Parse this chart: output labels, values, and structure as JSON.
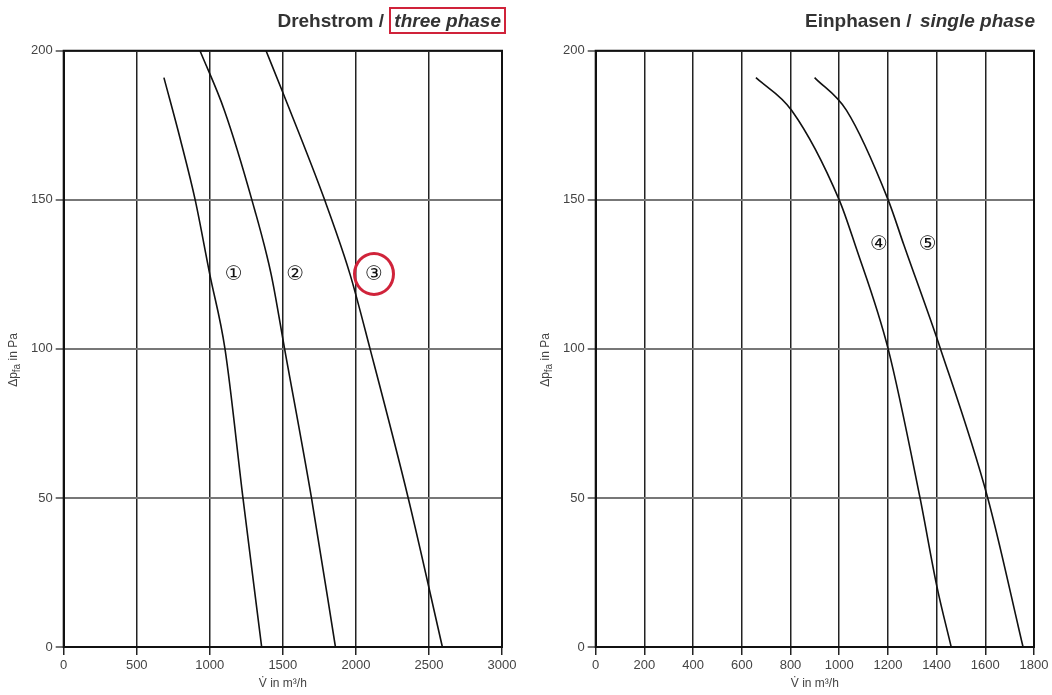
{
  "chart_data": [
    {
      "type": "line",
      "title": "Drehstrom / three phase",
      "xlabel": "V̇ in m³/h",
      "ylabel": "Δp$_{fa}$ in Pa",
      "xlim": [
        0,
        3000
      ],
      "xticks": [
        0,
        500,
        1000,
        1500,
        2000,
        2500,
        3000
      ],
      "ylim": [
        0,
        200
      ],
      "yticks": [
        0,
        50,
        100,
        150,
        200
      ],
      "grid": true,
      "legend": false,
      "marker": "none",
      "line_style": "solid",
      "series": [
        {
          "name": "①",
          "color": "#111111",
          "x": [
            686,
            800,
            900,
            1000,
            1104,
            1227,
            1355
          ],
          "values": [
            191,
            170,
            150,
            125,
            100,
            50,
            0
          ]
        },
        {
          "name": "②",
          "color": "#111111",
          "x": [
            933,
            1100,
            1288,
            1420,
            1512,
            1696,
            1860
          ],
          "values": [
            200,
            180,
            150,
            125,
            100,
            50,
            0
          ]
        },
        {
          "name": "③",
          "color": "#111111",
          "x": [
            1385,
            1500,
            1786,
            1960,
            2097,
            2358,
            2592
          ],
          "values": [
            200,
            186,
            150,
            125,
            100,
            50,
            0
          ]
        }
      ]
    },
    {
      "type": "line",
      "title": "Einphasen / single phase",
      "xlabel": "V̇ in m³/h",
      "ylabel": "Δp$_{fa}$ in Pa",
      "xlim": [
        0,
        1800
      ],
      "xticks": [
        0,
        200,
        400,
        600,
        800,
        1000,
        1200,
        1400,
        1600,
        1800
      ],
      "ylim": [
        0,
        200
      ],
      "yticks": [
        0,
        50,
        100,
        150,
        200
      ],
      "grid": true,
      "legend": false,
      "marker": "none",
      "line_style": "solid",
      "series": [
        {
          "name": "④",
          "color": "#111111",
          "x": [
            658,
            805,
            1000,
            1065,
            1201,
            1332,
            1402,
            1460
          ],
          "values": [
            191,
            180,
            150,
            135,
            100,
            50,
            20,
            0
          ]
        },
        {
          "name": "⑤",
          "color": "#111111",
          "x": [
            899,
            1030,
            1201,
            1265,
            1416,
            1610,
            1755
          ],
          "values": [
            191,
            180,
            150,
            135,
            100,
            50,
            0
          ]
        }
      ]
    }
  ]
}
